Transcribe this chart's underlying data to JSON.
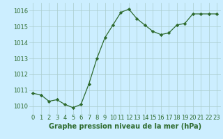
{
  "x": [
    0,
    1,
    2,
    3,
    4,
    5,
    6,
    7,
    8,
    9,
    10,
    11,
    12,
    13,
    14,
    15,
    16,
    17,
    18,
    19,
    20,
    21,
    22,
    23
  ],
  "y": [
    1010.8,
    1010.7,
    1010.3,
    1010.4,
    1010.1,
    1009.9,
    1010.1,
    1011.4,
    1013.0,
    1014.3,
    1015.1,
    1015.9,
    1016.1,
    1015.5,
    1015.1,
    1014.7,
    1014.5,
    1014.6,
    1015.1,
    1015.2,
    1015.8,
    1015.8,
    1015.8,
    1015.8
  ],
  "line_color": "#2d6a2d",
  "marker_color": "#2d6a2d",
  "bg_color": "#cceeff",
  "grid_color": "#aacccc",
  "xlabel": "Graphe pression niveau de la mer (hPa)",
  "xlabel_color": "#2d6a2d",
  "xlabel_fontsize": 7.0,
  "tick_color": "#2d6a2d",
  "tick_fontsize": 6.0,
  "ylim": [
    1009.5,
    1016.5
  ],
  "yticks": [
    1010,
    1011,
    1012,
    1013,
    1014,
    1015,
    1016
  ],
  "xlim": [
    -0.5,
    23.5
  ],
  "xticks": [
    0,
    1,
    2,
    3,
    4,
    5,
    6,
    7,
    8,
    9,
    10,
    11,
    12,
    13,
    14,
    15,
    16,
    17,
    18,
    19,
    20,
    21,
    22,
    23
  ]
}
